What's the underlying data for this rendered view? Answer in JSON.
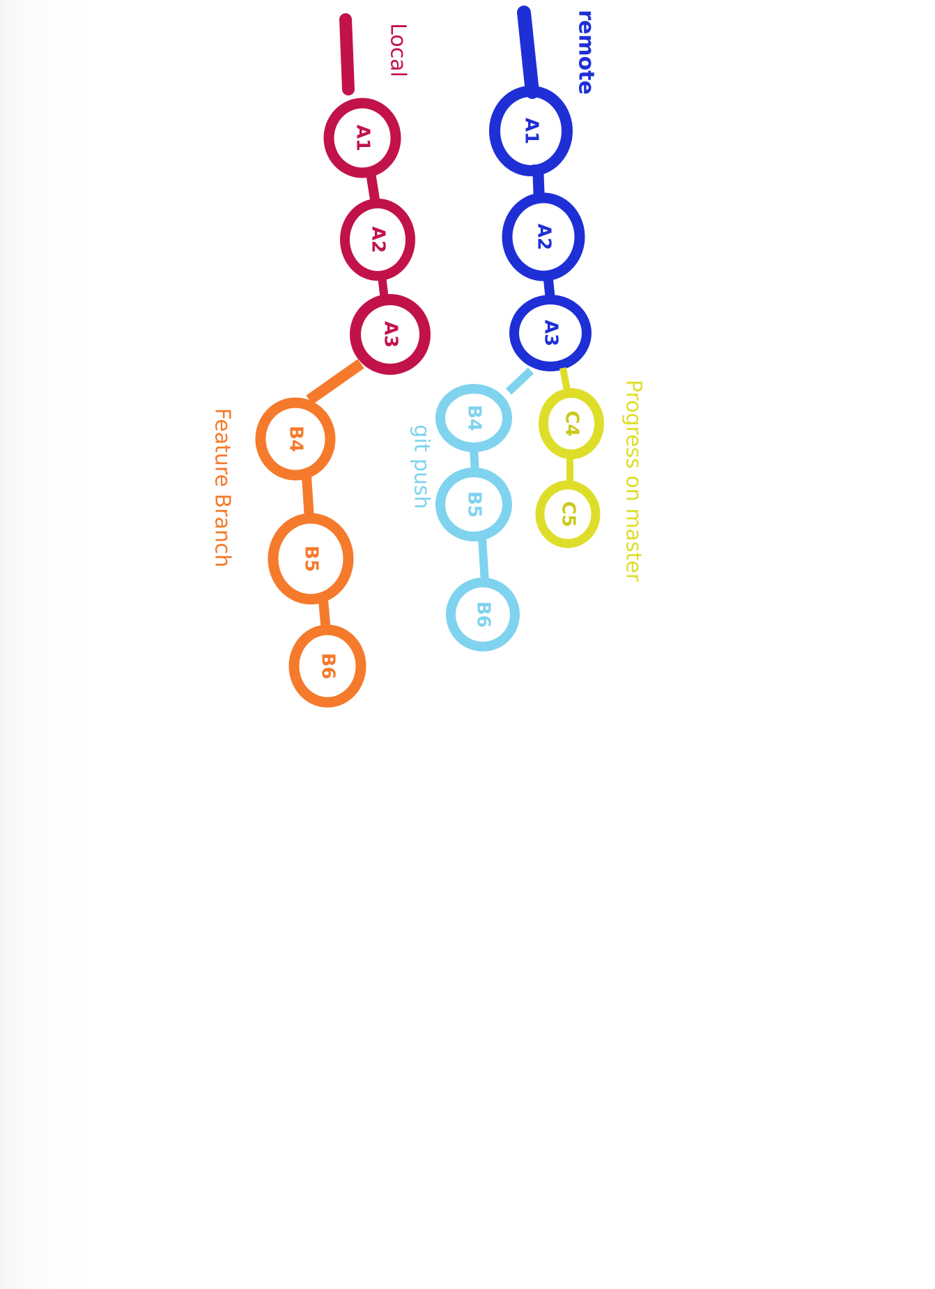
{
  "branches": {
    "remote": {
      "label": "remote",
      "color": "#1e2fd6",
      "commits": [
        "A1",
        "A2",
        "A3"
      ]
    },
    "local": {
      "label": "Local",
      "color": "#c2124a",
      "commits": [
        "A1",
        "A2",
        "A3"
      ]
    },
    "master_progress": {
      "label": "Progress on master",
      "color": "#dede2a",
      "commits": [
        "C4",
        "C5"
      ]
    },
    "git_push": {
      "label": "git push",
      "color": "#7fd3ee",
      "commits": [
        "B4",
        "B5",
        "B6"
      ]
    },
    "feature": {
      "label": "Feature Branch",
      "color": "#f57a2c",
      "commits": [
        "B4",
        "B5",
        "B6"
      ]
    }
  }
}
